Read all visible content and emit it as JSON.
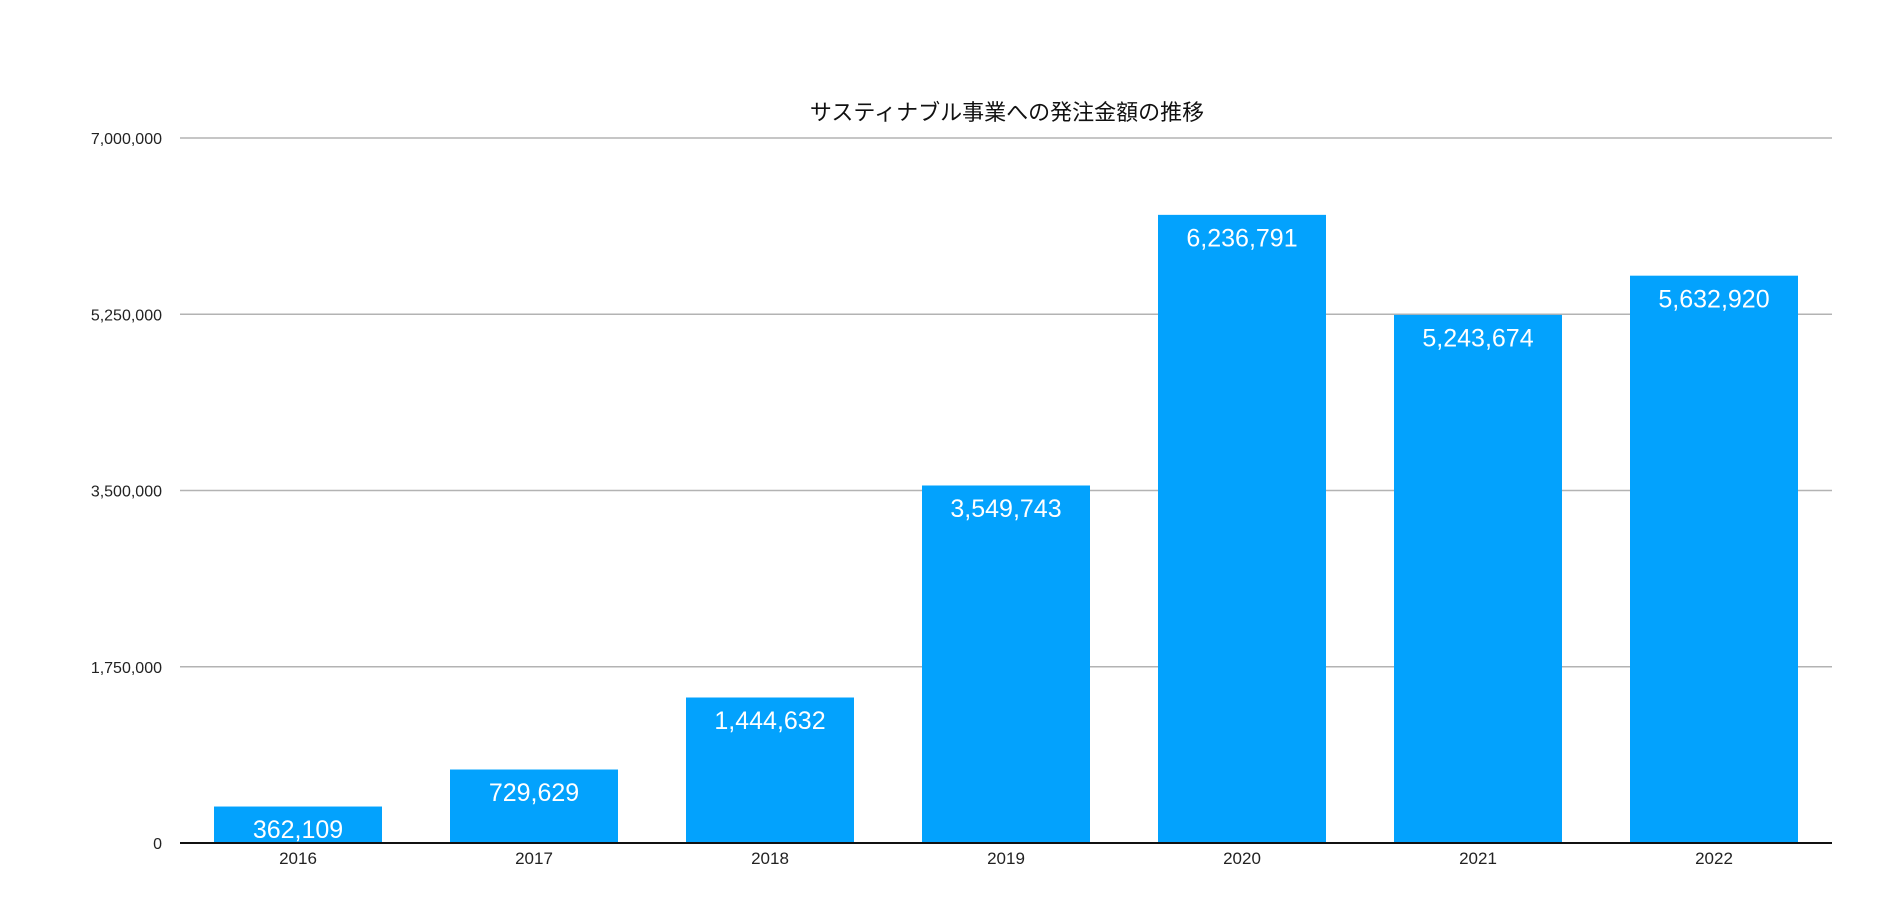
{
  "chart_data": {
    "type": "bar",
    "title": "サスティナブル事業への発注金額の推移",
    "xlabel": "",
    "ylabel": "",
    "categories": [
      "2016",
      "2017",
      "2018",
      "2019",
      "2020",
      "2021",
      "2022"
    ],
    "values": [
      362109,
      729629,
      1444632,
      3549743,
      6236791,
      5243674,
      5632920
    ],
    "value_labels": [
      "362,109",
      "729,629",
      "1,444,632",
      "3,549,743",
      "6,236,791",
      "5,243,674",
      "5,632,920"
    ],
    "ylim": [
      0,
      7000000
    ],
    "y_ticks": [
      0,
      1750000,
      3500000,
      5250000,
      7000000
    ],
    "y_tick_labels": [
      "0",
      "1,750,000",
      "3,500,000",
      "5,250,000",
      "7,000,000"
    ],
    "grid": true,
    "legend": "none",
    "bar_color": "#03a2fd"
  }
}
